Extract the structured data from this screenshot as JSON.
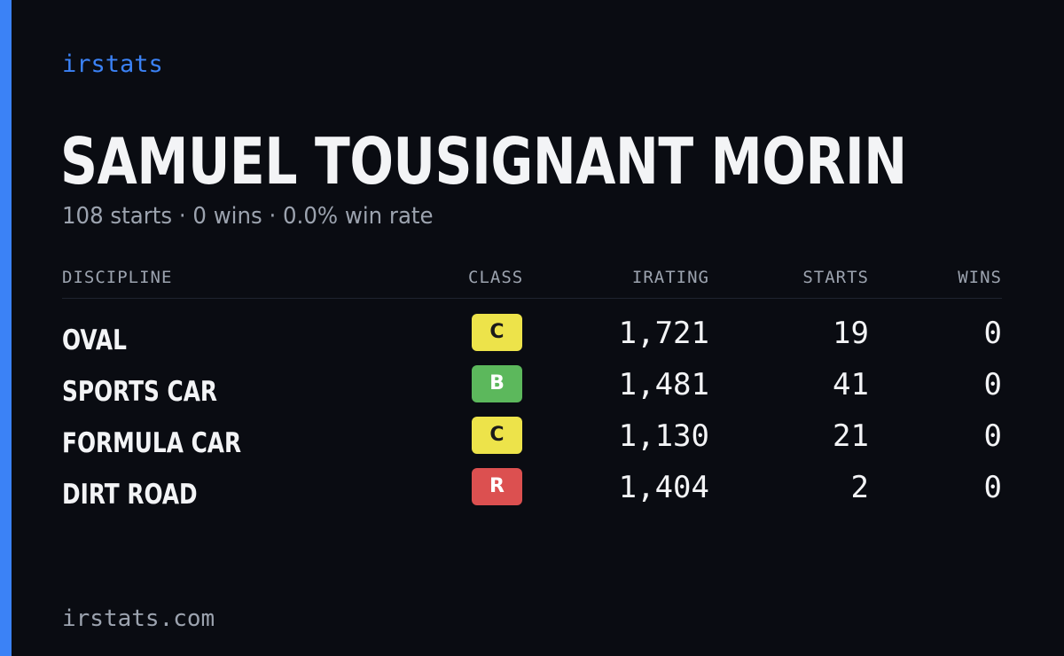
{
  "brand": "irstats",
  "driver": {
    "name": "SAMUEL TOUSIGNANT MORIN",
    "summary": "108 starts · 0 wins · 0.0% win rate"
  },
  "table": {
    "headers": {
      "discipline": "DISCIPLINE",
      "class": "CLASS",
      "irating": "IRATING",
      "starts": "STARTS",
      "wins": "WINS"
    },
    "rows": [
      {
        "discipline": "OVAL",
        "class": "C",
        "class_color": "#ede34a",
        "irating": "1,721",
        "starts": "19",
        "wins": "0"
      },
      {
        "discipline": "SPORTS CAR",
        "class": "B",
        "class_color": "#5cb85c",
        "irating": "1,481",
        "starts": "41",
        "wins": "0"
      },
      {
        "discipline": "FORMULA CAR",
        "class": "C",
        "class_color": "#ede34a",
        "irating": "1,130",
        "starts": "21",
        "wins": "0"
      },
      {
        "discipline": "DIRT ROAD",
        "class": "R",
        "class_color": "#dc5050",
        "irating": "1,404",
        "starts": "2",
        "wins": "0"
      }
    ]
  },
  "footer": "irstats.com",
  "colors": {
    "background": "#0a0c12",
    "accent": "#3b82f6",
    "text_primary": "#f3f4f6",
    "text_secondary": "#9ca3af"
  }
}
